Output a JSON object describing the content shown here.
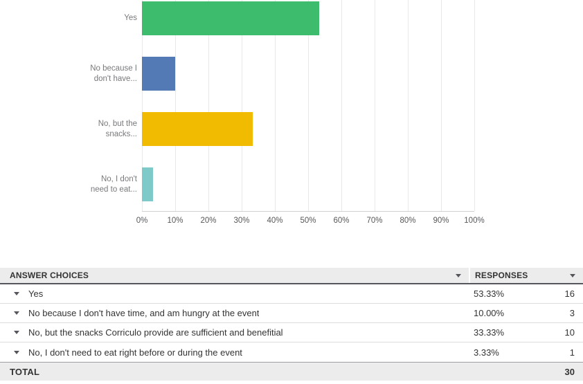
{
  "chart_data": {
    "type": "bar",
    "orientation": "horizontal",
    "title": "",
    "categories": [
      "Yes",
      "No because I don't have time, and am hungry at the event",
      "No, but the snacks Corriculo provide are sufficient and benefitial",
      "No, I don't need to eat right before or during the event"
    ],
    "category_tick_lines": [
      [
        "Yes"
      ],
      [
        "No because I",
        "don't have..."
      ],
      [
        "No, but the",
        "snacks..."
      ],
      [
        "No, I don't",
        "need to eat..."
      ]
    ],
    "values": [
      53.33,
      10.0,
      33.33,
      3.33
    ],
    "counts": [
      16,
      3,
      10,
      1
    ],
    "colors": [
      "#3EBC6E",
      "#547AB6",
      "#F0BB00",
      "#7DCAC8"
    ],
    "x_ticks": [
      "0%",
      "10%",
      "20%",
      "30%",
      "40%",
      "50%",
      "60%",
      "70%",
      "80%",
      "90%",
      "100%"
    ],
    "xlim": [
      0,
      100
    ],
    "grid": "vertical",
    "legend": "none"
  },
  "table": {
    "headers": {
      "answer_choices": "ANSWER CHOICES",
      "responses": "RESPONSES"
    },
    "rows": [
      {
        "label": "Yes",
        "percent": "53.33%",
        "count": "16"
      },
      {
        "label": "No because I don't have time, and am hungry at the event",
        "percent": "10.00%",
        "count": "3"
      },
      {
        "label": "No, but the snacks Corriculo provide are sufficient and benefitial",
        "percent": "33.33%",
        "count": "10"
      },
      {
        "label": "No, I don't need to eat right before or during the event",
        "percent": "3.33%",
        "count": "1"
      }
    ],
    "total": {
      "label": "TOTAL",
      "count": "30"
    }
  }
}
